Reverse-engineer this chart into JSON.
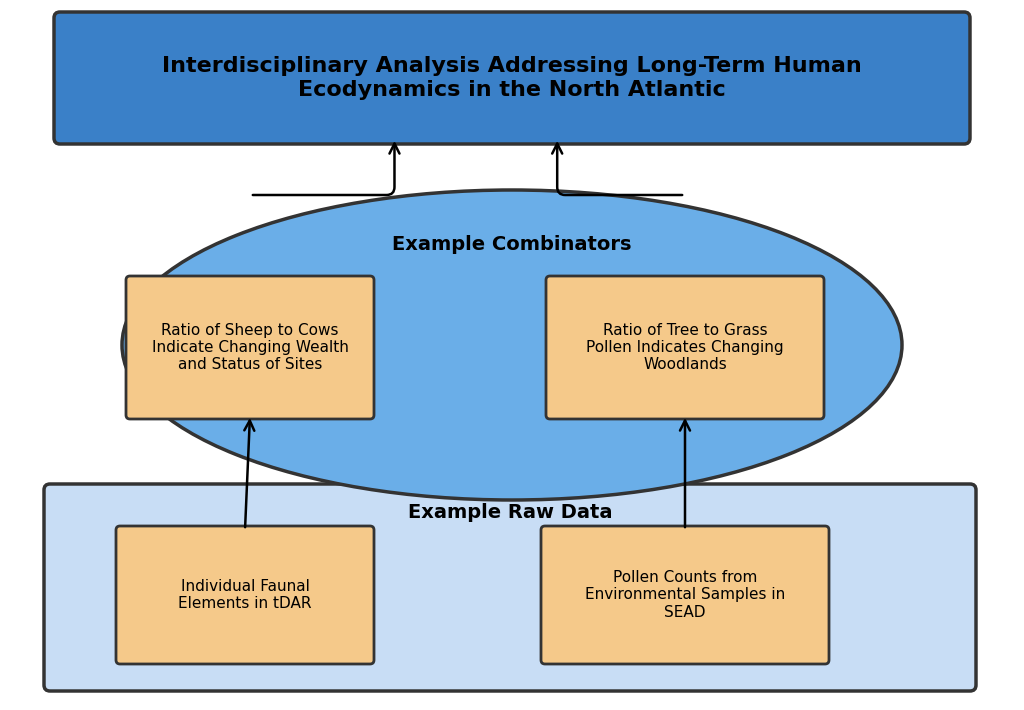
{
  "title": "Interdisciplinary Analysis Addressing Long-Term Human\nEcodynamics in the North Atlantic",
  "title_box_color": "#3a80c8",
  "title_text_color": "#000000",
  "title_box_edge_color": "#333333",
  "ellipse_label": "Example Combinators",
  "ellipse_fill": "#6aaee8",
  "ellipse_edge": "#333333",
  "raw_data_box_fill": "#c8ddf5",
  "raw_data_box_edge": "#333333",
  "raw_data_label": "Example Raw Data",
  "inner_box_fill": "#f5c98a",
  "inner_box_edge": "#333333",
  "combinator_left_text": "Ratio of Sheep to Cows\nIndicate Changing Wealth\nand Status of Sites",
  "combinator_right_text": "Ratio of Tree to Grass\nPollen Indicates Changing\nWoodlands",
  "raw_left_text": "Individual Faunal\nElements in tDAR",
  "raw_right_text": "Pollen Counts from\nEnvironmental Samples in\nSEAD",
  "background_color": "#ffffff",
  "fig_width": 10.24,
  "fig_height": 7.1
}
